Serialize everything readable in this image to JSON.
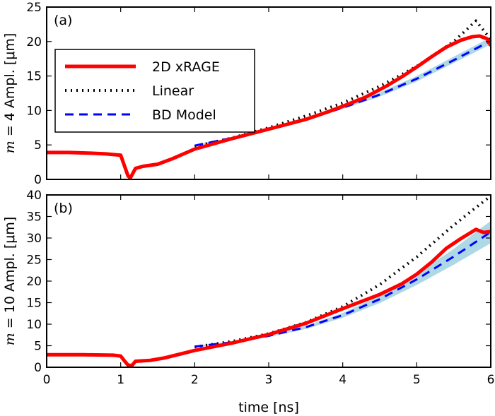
{
  "chart_data": [
    {
      "type": "line",
      "panel_label": "(a)",
      "xlabel": "",
      "ylabel": "m = 4 Ampl. [μm]",
      "ylabel_math": "m",
      "ylabel_math_rest": " = 4",
      "ylabel_text": " Ampl. [μm]",
      "xlim": [
        0,
        6
      ],
      "ylim": [
        0,
        25
      ],
      "xticks": [
        "",
        "",
        "",
        "",
        "",
        "",
        ""
      ],
      "xtick_values": [
        0,
        1,
        2,
        3,
        4,
        5,
        6
      ],
      "yticks": [
        "0",
        "5",
        "10",
        "15",
        "20",
        "25"
      ],
      "ytick_values": [
        0,
        5,
        10,
        15,
        20,
        25
      ],
      "grid": false,
      "legend": {
        "placement": "upper-left",
        "entries": [
          "2D xRAGE",
          "Linear",
          "BD Model"
        ]
      },
      "band": {
        "color": "#add8e6",
        "x": [
          2.0,
          2.5,
          3.0,
          3.5,
          4.0,
          4.5,
          5.0,
          5.5,
          6.0
        ],
        "lower": [
          4.8,
          5.9,
          7.2,
          8.6,
          10.2,
          12.0,
          14.2,
          16.9,
          19.6
        ],
        "upper": [
          5.0,
          6.1,
          7.4,
          8.9,
          10.6,
          12.6,
          15.0,
          17.8,
          20.6
        ]
      },
      "series": [
        {
          "name": "2D xRAGE",
          "color": "#ff0000",
          "style": "solid",
          "x": [
            0.0,
            0.3,
            0.6,
            0.8,
            1.0,
            1.05,
            1.1,
            1.13,
            1.2,
            1.3,
            1.5,
            1.7,
            2.0,
            2.5,
            3.0,
            3.5,
            3.8,
            4.0,
            4.3,
            4.6,
            4.8,
            5.0,
            5.2,
            5.4,
            5.6,
            5.75,
            5.85,
            5.95,
            6.0
          ],
          "y": [
            3.9,
            3.9,
            3.8,
            3.7,
            3.5,
            2.0,
            0.5,
            0.2,
            1.6,
            1.9,
            2.2,
            3.0,
            4.4,
            5.9,
            7.3,
            8.7,
            9.8,
            10.6,
            11.9,
            13.6,
            14.9,
            16.3,
            17.8,
            19.2,
            20.2,
            20.7,
            20.8,
            20.4,
            19.4
          ]
        },
        {
          "name": "Linear",
          "color": "#000000",
          "style": "dotted",
          "x": [
            2.0,
            2.5,
            3.0,
            3.5,
            4.0,
            4.5,
            5.0,
            5.5,
            5.8,
            6.0
          ],
          "y": [
            4.8,
            6.0,
            7.5,
            9.2,
            11.1,
            13.5,
            16.4,
            20.0,
            23.0,
            20.3
          ]
        },
        {
          "name": "BD Model",
          "color": "#0000ff",
          "style": "dashed",
          "x": [
            2.0,
            2.5,
            3.0,
            3.5,
            4.0,
            4.5,
            5.0,
            5.5,
            6.0
          ],
          "y": [
            4.9,
            6.0,
            7.3,
            8.7,
            10.4,
            12.3,
            14.6,
            17.3,
            20.1
          ]
        }
      ]
    },
    {
      "type": "line",
      "panel_label": "(b)",
      "xlabel": "time [ns]",
      "ylabel": "m = 10 Ampl. [μm]",
      "ylabel_math": "m",
      "ylabel_math_rest": " = 10",
      "ylabel_text": " Ampl. [μm]",
      "xlim": [
        0,
        6
      ],
      "ylim": [
        0,
        40
      ],
      "xticks": [
        "0",
        "1",
        "2",
        "3",
        "4",
        "5",
        "6"
      ],
      "xtick_values": [
        0,
        1,
        2,
        3,
        4,
        5,
        6
      ],
      "yticks": [
        "0",
        "5",
        "10",
        "15",
        "20",
        "25",
        "30",
        "35",
        "40"
      ],
      "ytick_values": [
        0,
        5,
        10,
        15,
        20,
        25,
        30,
        35,
        40
      ],
      "grid": false,
      "band": {
        "color": "#add8e6",
        "x": [
          2.0,
          2.5,
          3.0,
          3.5,
          4.0,
          4.5,
          5.0,
          5.5,
          6.0
        ],
        "lower": [
          4.7,
          5.6,
          7.0,
          8.9,
          11.5,
          14.9,
          19.1,
          23.8,
          28.8
        ],
        "upper": [
          5.0,
          6.0,
          7.5,
          9.6,
          12.6,
          16.6,
          21.7,
          27.5,
          34.0
        ]
      },
      "series": [
        {
          "name": "2D xRAGE",
          "color": "#ff0000",
          "style": "solid",
          "x": [
            0.0,
            0.5,
            0.9,
            1.0,
            1.05,
            1.1,
            1.15,
            1.2,
            1.4,
            1.6,
            2.0,
            2.5,
            3.0,
            3.5,
            4.0,
            4.5,
            4.8,
            5.0,
            5.2,
            5.4,
            5.6,
            5.8,
            5.9,
            6.0
          ],
          "y": [
            2.9,
            2.9,
            2.8,
            2.6,
            1.5,
            0.5,
            0.4,
            1.4,
            1.6,
            2.2,
            3.9,
            5.6,
            7.6,
            10.2,
            13.6,
            16.9,
            19.4,
            21.6,
            24.4,
            27.6,
            29.9,
            32.0,
            31.3,
            31.5
          ]
        },
        {
          "name": "Linear",
          "color": "#000000",
          "style": "dotted",
          "x": [
            2.0,
            2.5,
            3.0,
            3.5,
            4.0,
            4.5,
            5.0,
            5.5,
            6.0
          ],
          "y": [
            4.7,
            6.0,
            7.8,
            10.4,
            14.1,
            19.2,
            25.6,
            33.0,
            39.8
          ]
        },
        {
          "name": "BD Model",
          "color": "#0000ff",
          "style": "dashed",
          "x": [
            2.0,
            2.5,
            3.0,
            3.5,
            4.0,
            4.5,
            5.0,
            5.5,
            6.0
          ],
          "y": [
            4.8,
            5.8,
            7.3,
            9.3,
            12.1,
            15.8,
            20.4,
            25.7,
            31.4
          ]
        }
      ]
    }
  ]
}
